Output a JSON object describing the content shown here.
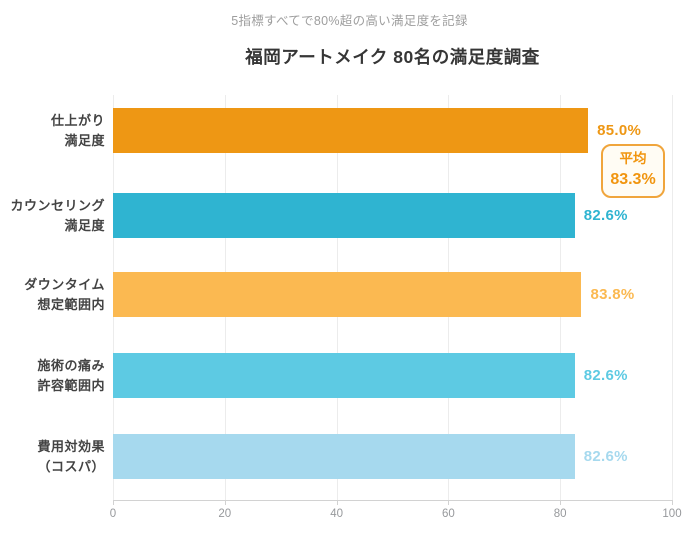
{
  "header": {
    "subtitle": "5指標すべてで80%超の高い満足度を記録",
    "title": "福岡アートメイク 80名の満足度調査"
  },
  "average_badge": {
    "label": "平均",
    "value": "83.3%"
  },
  "chart_data": {
    "type": "bar",
    "orientation": "horizontal",
    "title": "福岡アートメイク 80名の満足度調査",
    "subtitle": "5指標すべてで80%超の高い満足度を記録",
    "categories": [
      [
        "仕上がり",
        "満足度"
      ],
      [
        "カウンセリング",
        "満足度"
      ],
      [
        "ダウンタイム",
        "想定範囲内"
      ],
      [
        "施術の痛み",
        "許容範囲内"
      ],
      [
        "費用対効果",
        "（コスパ）"
      ]
    ],
    "values": [
      85.0,
      82.6,
      83.8,
      82.6,
      82.6
    ],
    "value_labels": [
      "85.0%",
      "82.6%",
      "83.8%",
      "82.6%",
      "82.6%"
    ],
    "bar_colors": [
      "#ee9714",
      "#2fb4d1",
      "#fbb951",
      "#5dcae3",
      "#a6d9ee"
    ],
    "average": {
      "label": "平均",
      "value": "83.3%"
    },
    "xlim": [
      0,
      100
    ],
    "x_ticks": [
      "0",
      "20",
      "40",
      "60",
      "80",
      "100"
    ],
    "grid": true,
    "legend": false
  },
  "colors": {
    "title": "#363636",
    "subtitle": "#9e9e9e",
    "category_label": "#434343",
    "axis_line": "#d2d2d2",
    "gridline": "#ececec",
    "tick_label": "#97999c",
    "badge_border": "#f0a53c",
    "badge_background": "#fffcf4",
    "badge_text": "#f1950f"
  }
}
